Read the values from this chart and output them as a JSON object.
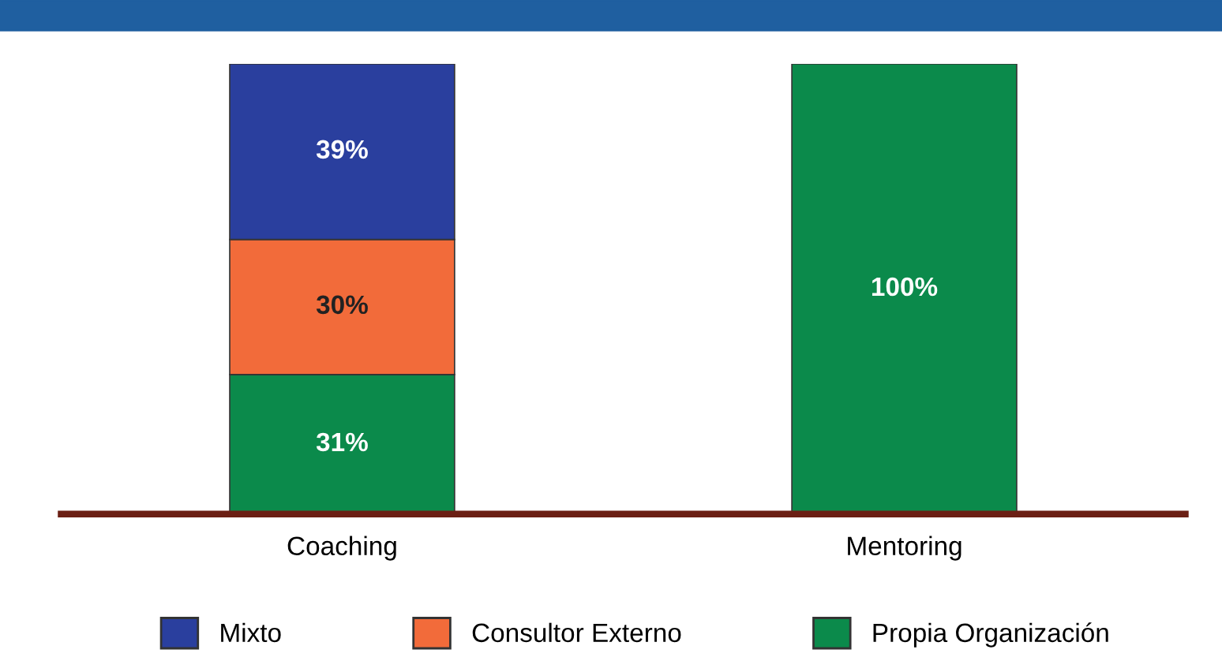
{
  "chart_data": {
    "type": "bar",
    "stacked": true,
    "categories": [
      "Coaching",
      "Mentoring"
    ],
    "series": [
      {
        "name": "Propia Organización",
        "color": "#0b8a4b",
        "values": [
          31,
          100
        ],
        "value_labels": [
          "31%",
          "100%"
        ]
      },
      {
        "name": "Consultor Externo",
        "color": "#f26b3a",
        "values": [
          30,
          null
        ],
        "value_labels": [
          "30%",
          null
        ]
      },
      {
        "name": "Mixto",
        "color": "#2a3f9e",
        "values": [
          39,
          null
        ],
        "value_labels": [
          "39%",
          null
        ]
      }
    ],
    "legend": "bottom"
  }
}
